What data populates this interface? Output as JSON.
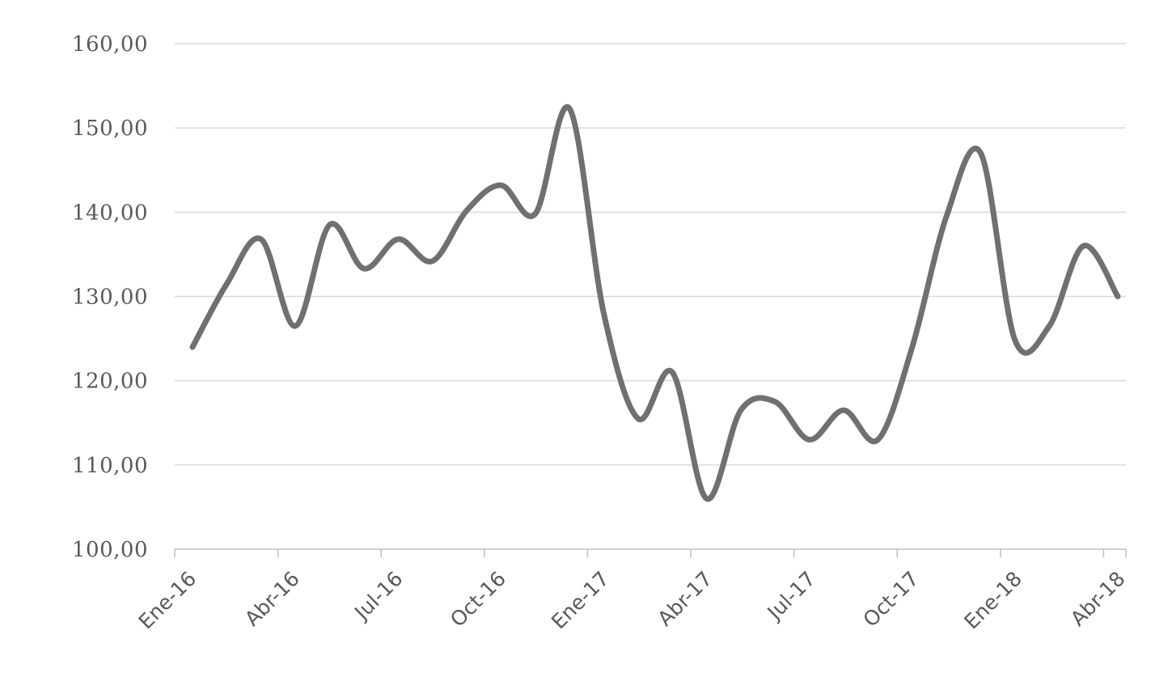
{
  "chart_data": {
    "type": "line",
    "title": "",
    "xlabel": "",
    "ylabel": "",
    "ylim": [
      100,
      160
    ],
    "y_ticks": [
      "100,00",
      "110,00",
      "120,00",
      "130,00",
      "140,00",
      "150,00",
      "160,00"
    ],
    "x_tick_labels": [
      "Ene-16",
      "Abr-16",
      "Jul-16",
      "Oct-16",
      "Ene-17",
      "Abr-17",
      "Jul-17",
      "Oct-17",
      "Ene-18",
      "Abr-18"
    ],
    "grid": true,
    "legend": "none",
    "x": [
      "Ene-16",
      "Feb-16",
      "Mar-16",
      "Abr-16",
      "May-16",
      "Jun-16",
      "Jul-16",
      "Ago-16",
      "Sep-16",
      "Oct-16",
      "Nov-16",
      "Dic-16",
      "Ene-17",
      "Feb-17",
      "Mar-17",
      "Abr-17",
      "May-17",
      "Jun-17",
      "Jul-17",
      "Ago-17",
      "Sep-17",
      "Oct-17",
      "Nov-17",
      "Dic-17",
      "Ene-18",
      "Feb-18",
      "Mar-18",
      "Abr-18"
    ],
    "series": [
      {
        "color": "#707070",
        "values": [
          124.0,
          131.5,
          136.8,
          126.5,
          138.5,
          133.3,
          136.8,
          134.2,
          140.2,
          143.2,
          139.8,
          152.3,
          128.0,
          115.5,
          121.0,
          106.0,
          116.5,
          117.5,
          113.0,
          116.5,
          113.0,
          124.0,
          139.5,
          147.0,
          124.8,
          126.5,
          136.0,
          130.0
        ]
      }
    ]
  }
}
